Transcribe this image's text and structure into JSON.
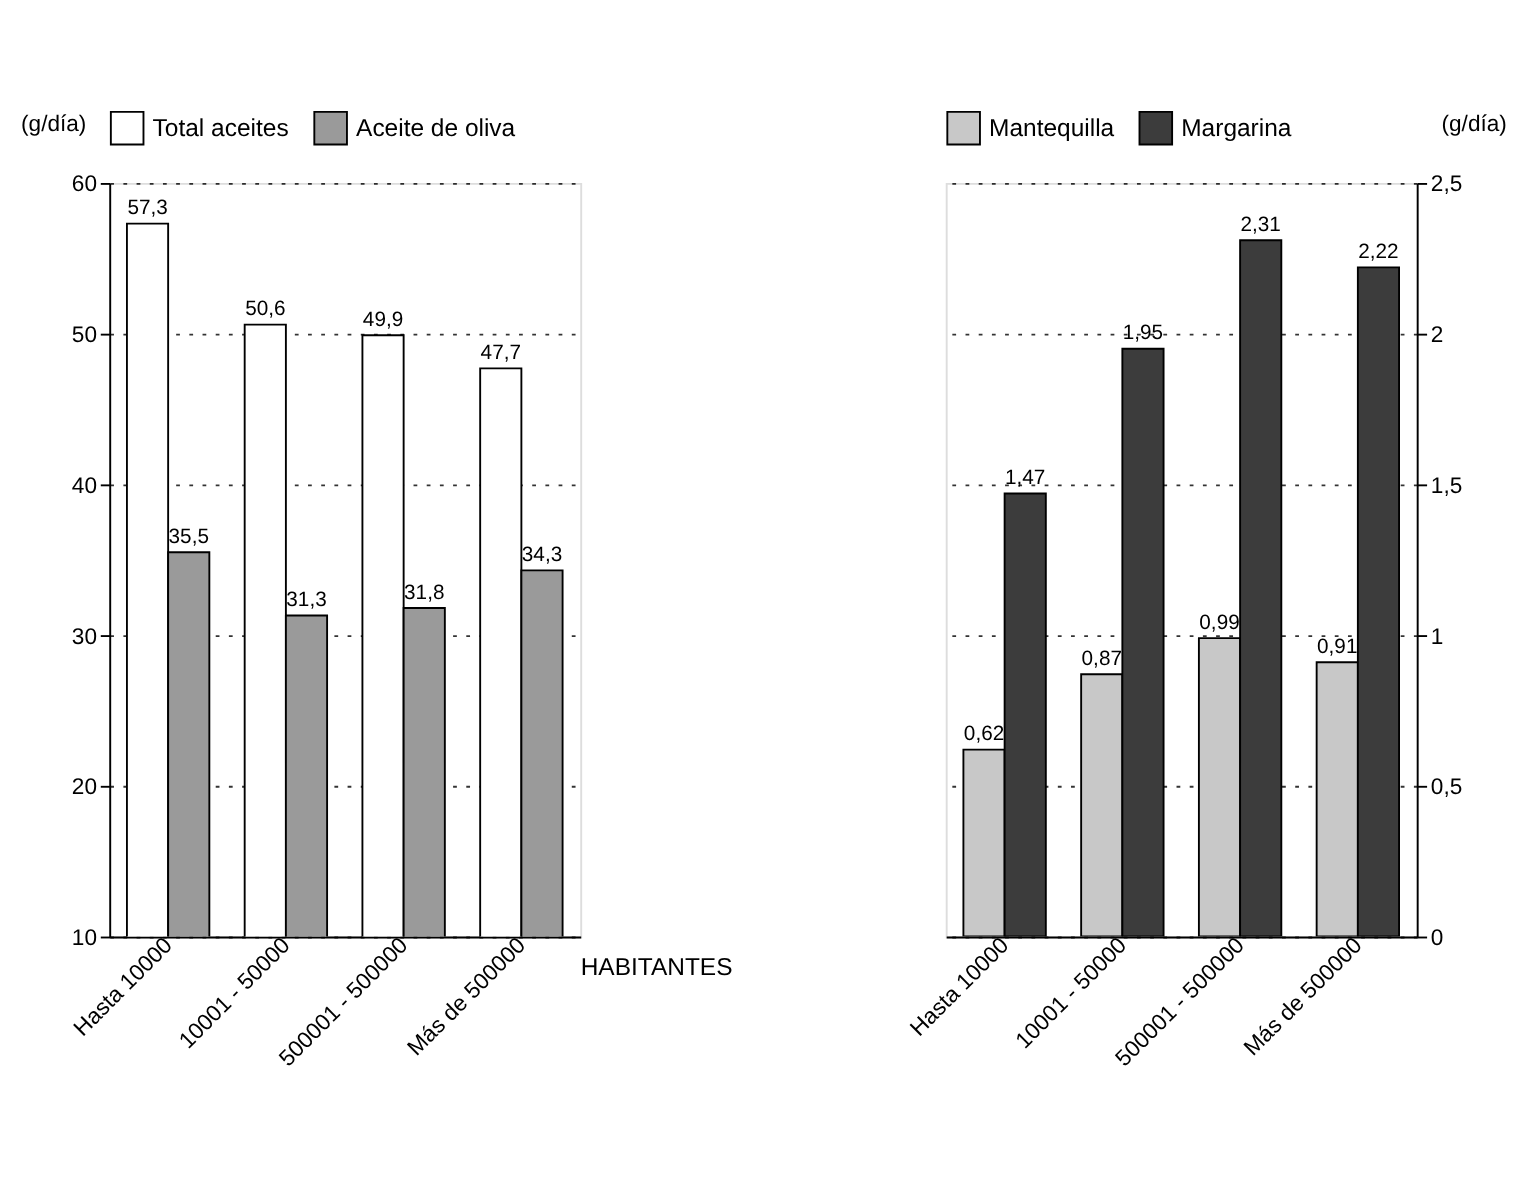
{
  "chart_data": [
    {
      "type": "bar",
      "categories": [
        "Hasta 10000",
        "10001 - 50000",
        "500001 - 500000",
        "Más de 500000"
      ],
      "ylabel": "(g/día)",
      "xlabel": "HABITANTES",
      "ylim": [
        10,
        60
      ],
      "yticks": [
        10,
        20,
        30,
        40,
        50,
        60
      ],
      "grid": "y",
      "legend": "top",
      "series": [
        {
          "name": "Total aceites",
          "color": "#ffffff",
          "values": [
            57.3,
            50.6,
            49.9,
            47.7
          ],
          "value_labels": [
            "57,3",
            "50,6",
            "49,9",
            "47,7"
          ]
        },
        {
          "name": "Aceite de oliva",
          "color": "#9a9a9a",
          "values": [
            35.5,
            31.3,
            31.8,
            34.3
          ],
          "value_labels": [
            "35,5",
            "31,3",
            "31,8",
            "34,3"
          ]
        }
      ]
    },
    {
      "type": "bar",
      "categories": [
        "Hasta 10000",
        "10001 - 50000",
        "500001 - 500000",
        "Más de 500000"
      ],
      "y2label": "(g/día)",
      "y2lim": [
        0,
        2.5
      ],
      "y2ticks": [
        0,
        {
          "value": 0.5,
          "label": "0,5"
        },
        1,
        {
          "value": 1.5,
          "label": "1,5"
        },
        2,
        {
          "value": 2.5,
          "label": "2,5"
        }
      ],
      "grid": "y",
      "legend": "top",
      "series": [
        {
          "name": "Mantequilla",
          "color": "#c8c8c8",
          "axis": "y2",
          "values": [
            0.62,
            0.87,
            0.99,
            0.91
          ],
          "value_labels": [
            "0,62",
            "0,87",
            "0,99",
            "0,91"
          ]
        },
        {
          "name": "Margarina",
          "color": "#3c3c3c",
          "axis": "y2",
          "values": [
            1.47,
            1.95,
            2.31,
            2.22
          ],
          "value_labels": [
            "1,47",
            "1,95",
            "2,31",
            "2,22"
          ]
        }
      ]
    }
  ]
}
